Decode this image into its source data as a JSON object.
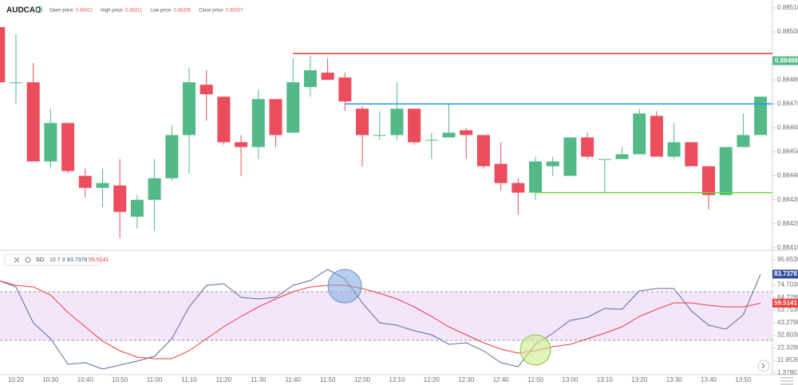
{
  "header": {
    "symbol": "AUDCAD",
    "prices": [
      {
        "label": "Open price:",
        "value": "0.88311"
      },
      {
        "label": "High price:",
        "value": "0.88311"
      },
      {
        "label": "Low price:",
        "value": "0.88305"
      },
      {
        "label": "Close price:",
        "value": "0.88307"
      }
    ]
  },
  "chart_data": [
    {
      "type": "candlestick",
      "categories": [
        null,
        "10:20",
        null,
        "10:30",
        null,
        "10:40",
        null,
        "10:50",
        null,
        "11:00",
        null,
        "11:10",
        null,
        "11:20",
        null,
        "11:30",
        null,
        "11:40",
        null,
        "11:50",
        null,
        "12:00",
        null,
        "12:10",
        null,
        "12:20",
        null,
        "12:30",
        null,
        "12:40",
        null,
        "12:50",
        null,
        "13:00",
        null,
        "13:10",
        null,
        "13:20",
        null,
        "13:30",
        null,
        "13:40",
        null,
        "13:50",
        null
      ],
      "open": [
        0.88502,
        0.88479,
        0.88479,
        0.88446,
        0.88462,
        0.8844,
        0.88435,
        0.88436,
        0.88423,
        0.8843,
        0.88439,
        0.88457,
        0.88478,
        0.88473,
        0.88454,
        0.88452,
        0.88472,
        0.88458,
        0.88477,
        0.88483,
        0.88481,
        0.88468,
        0.88457,
        0.88457,
        0.88468,
        0.88455,
        0.88456,
        0.88459,
        0.88457,
        0.88445,
        0.88437,
        0.88433,
        0.88444,
        0.8844,
        0.88456,
        0.88447,
        0.88447,
        0.88449,
        0.88465,
        0.88448,
        0.88454,
        0.88444,
        0.88432,
        0.88452,
        0.88457
      ],
      "high": [
        0.88502,
        0.88499,
        0.88487,
        0.88468,
        0.88462,
        0.88443,
        0.88443,
        0.88447,
        0.88432,
        0.88447,
        0.88461,
        0.88485,
        0.88484,
        0.88473,
        0.88457,
        0.88476,
        0.88472,
        0.88489,
        0.8849,
        0.88489,
        0.88483,
        0.88469,
        0.88467,
        0.88479,
        0.88468,
        0.88458,
        0.8847,
        0.8846,
        0.88457,
        0.88454,
        0.88439,
        0.88448,
        0.88448,
        0.88456,
        0.88458,
        0.88447,
        0.88452,
        0.88468,
        0.88467,
        0.88462,
        0.88454,
        0.88444,
        0.88452,
        0.88466,
        0.88473
      ],
      "low": [
        0.88479,
        0.8847,
        0.88446,
        0.88443,
        0.88441,
        0.88431,
        0.88427,
        0.88414,
        0.88418,
        0.88417,
        0.88438,
        0.88441,
        0.88463,
        0.88453,
        0.8844,
        0.88447,
        0.88452,
        0.88458,
        0.88473,
        0.8848,
        0.88467,
        0.88444,
        0.88455,
        0.88455,
        0.88453,
        0.88447,
        0.88456,
        0.88447,
        0.88443,
        0.88434,
        0.88424,
        0.8843,
        0.8844,
        0.8844,
        0.88447,
        0.88433,
        0.88447,
        0.88449,
        0.88448,
        0.88447,
        0.88444,
        0.88426,
        0.88432,
        0.88452,
        0.88457
      ],
      "close": [
        0.88479,
        0.88479,
        0.88446,
        0.88462,
        0.88442,
        0.88435,
        0.88437,
        0.88425,
        0.8843,
        0.88439,
        0.88457,
        0.88479,
        0.88474,
        0.88454,
        0.88452,
        0.88472,
        0.88457,
        0.88479,
        0.88484,
        0.8848,
        0.88471,
        0.88457,
        0.88457,
        0.88468,
        0.88454,
        0.88455,
        0.88458,
        0.88457,
        0.88444,
        0.88437,
        0.88433,
        0.88446,
        0.88446,
        0.88456,
        0.88448,
        0.88447,
        0.88449,
        0.88466,
        0.88448,
        0.88454,
        0.88444,
        0.88432,
        0.88452,
        0.88457,
        0.88473
      ],
      "up_color": "#53b987",
      "down_color": "#eb4d5c",
      "ylim": [
        0.884093,
        0.885133
      ],
      "yticks": [
        {
          "value": 0.8851,
          "label": "0.88510"
        },
        {
          "value": 0.885,
          "label": "0.88500"
        },
        {
          "value": 0.8848,
          "label": "0.88480"
        },
        {
          "value": 0.8847,
          "label": "0.88470"
        },
        {
          "value": 0.8846,
          "label": "0.88460"
        },
        {
          "value": 0.8845,
          "label": "0.88450"
        },
        {
          "value": 0.8844,
          "label": "0.88440"
        },
        {
          "value": 0.8843,
          "label": "0.88430"
        },
        {
          "value": 0.8842,
          "label": "0.88420"
        },
        {
          "value": 0.8841,
          "label": "0.88410"
        }
      ],
      "current_price": 0.88488,
      "current_price_color": "#53b987",
      "levels": [
        {
          "value": 0.88491,
          "color": "#e0393e",
          "start_index": 17
        },
        {
          "value": 0.8847,
          "color": "#2196f3",
          "start_index": 20
        },
        {
          "value": 0.88433,
          "color": "#66dd33",
          "start_index": 31
        }
      ]
    },
    {
      "type": "line",
      "title": "SO",
      "params": "10 7 3",
      "series": [
        {
          "color": "#5b6a9e",
          "values": [
            78.37,
            73.05,
            43.12,
            29.83,
            8.55,
            9.88,
            4.56,
            7.89,
            11.21,
            15.2,
            29.83,
            56.42,
            74.38,
            75.7,
            64.4,
            63.07,
            64.4,
            74.38,
            78.37,
            87.67,
            79.7,
            59.75,
            43.12,
            41.13,
            36.48,
            33.15,
            25.17,
            26.5,
            19.85,
            9.88,
            6.56,
            25.17,
            34.48,
            45.12,
            47.78,
            55.09,
            54.43,
            69.72,
            71.72,
            71.72,
            53.1,
            41.13,
            37.81,
            49.78,
            83.7378
          ],
          "tag_color": "#2f4f9e"
        },
        {
          "color": "#ef3b3b",
          "values": [
            78.37,
            74.38,
            73.05,
            66.4,
            51.77,
            39.8,
            27.83,
            19.85,
            14.53,
            13.21,
            13.21,
            19.85,
            29.83,
            39.8,
            48.45,
            56.42,
            63.07,
            69.06,
            73.05,
            74.38,
            74.38,
            71.72,
            67.73,
            63.07,
            56.42,
            48.45,
            39.8,
            33.15,
            26.5,
            21.18,
            17.86,
            19.85,
            23.18,
            25.17,
            29.83,
            34.48,
            39.8,
            48.45,
            54.43,
            59.75,
            59.75,
            57.75,
            56.42,
            56.42,
            59.5141
          ],
          "tag_color": "#ef3b3b"
        }
      ],
      "ylim": [
        1.24,
        100.97
      ],
      "yticks": [
        {
          "value": 95.653,
          "label": "95.6530"
        },
        {
          "value": 74.703,
          "label": "74.7030"
        },
        {
          "value": 64.228,
          "label": "64.2280"
        },
        {
          "value": 53.753,
          "label": "53.7530"
        },
        {
          "value": 43.278,
          "label": "43.2780"
        },
        {
          "value": 32.803,
          "label": "32.8030"
        },
        {
          "value": 22.328,
          "label": "22.3280"
        },
        {
          "value": 11.853,
          "label": "11.8530"
        },
        {
          "value": 1.378,
          "label": "1.3780"
        }
      ]
    }
  ]
}
